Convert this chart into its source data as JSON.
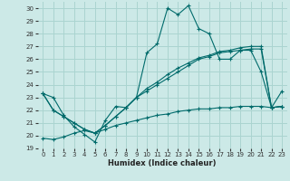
{
  "xlabel": "Humidex (Indice chaleur)",
  "xlim": [
    -0.5,
    23.5
  ],
  "ylim": [
    19,
    30.5
  ],
  "yticks": [
    19,
    20,
    21,
    22,
    23,
    24,
    25,
    26,
    27,
    28,
    29,
    30
  ],
  "xticks": [
    0,
    1,
    2,
    3,
    4,
    5,
    6,
    7,
    8,
    9,
    10,
    11,
    12,
    13,
    14,
    15,
    16,
    17,
    18,
    19,
    20,
    21,
    22,
    23
  ],
  "bg_color": "#cce9e7",
  "grid_color": "#aad4d0",
  "line_color": "#006b6b",
  "line1": [
    23.3,
    23.0,
    21.6,
    20.7,
    20.1,
    19.5,
    21.2,
    22.3,
    22.2,
    23.0,
    26.5,
    27.2,
    30.0,
    29.5,
    30.2,
    28.4,
    28.0,
    26.0,
    26.0,
    26.7,
    26.7,
    25.0,
    22.2,
    23.5
  ],
  "line2": [
    23.3,
    22.0,
    21.5,
    21.0,
    20.5,
    20.2,
    20.8,
    21.5,
    22.2,
    23.0,
    23.5,
    24.0,
    24.5,
    25.0,
    25.5,
    26.0,
    26.2,
    26.5,
    26.6,
    26.7,
    26.8,
    26.8,
    22.2,
    22.3
  ],
  "line3": [
    23.3,
    22.0,
    21.5,
    21.0,
    20.5,
    20.2,
    20.8,
    21.5,
    22.2,
    23.0,
    23.7,
    24.2,
    24.8,
    25.3,
    25.7,
    26.1,
    26.3,
    26.6,
    26.7,
    26.9,
    27.0,
    27.0,
    22.2,
    22.3
  ],
  "line4": [
    19.8,
    19.7,
    19.9,
    20.2,
    20.4,
    20.2,
    20.5,
    20.8,
    21.0,
    21.2,
    21.4,
    21.6,
    21.7,
    21.9,
    22.0,
    22.1,
    22.1,
    22.2,
    22.2,
    22.3,
    22.3,
    22.3,
    22.2,
    22.3
  ]
}
